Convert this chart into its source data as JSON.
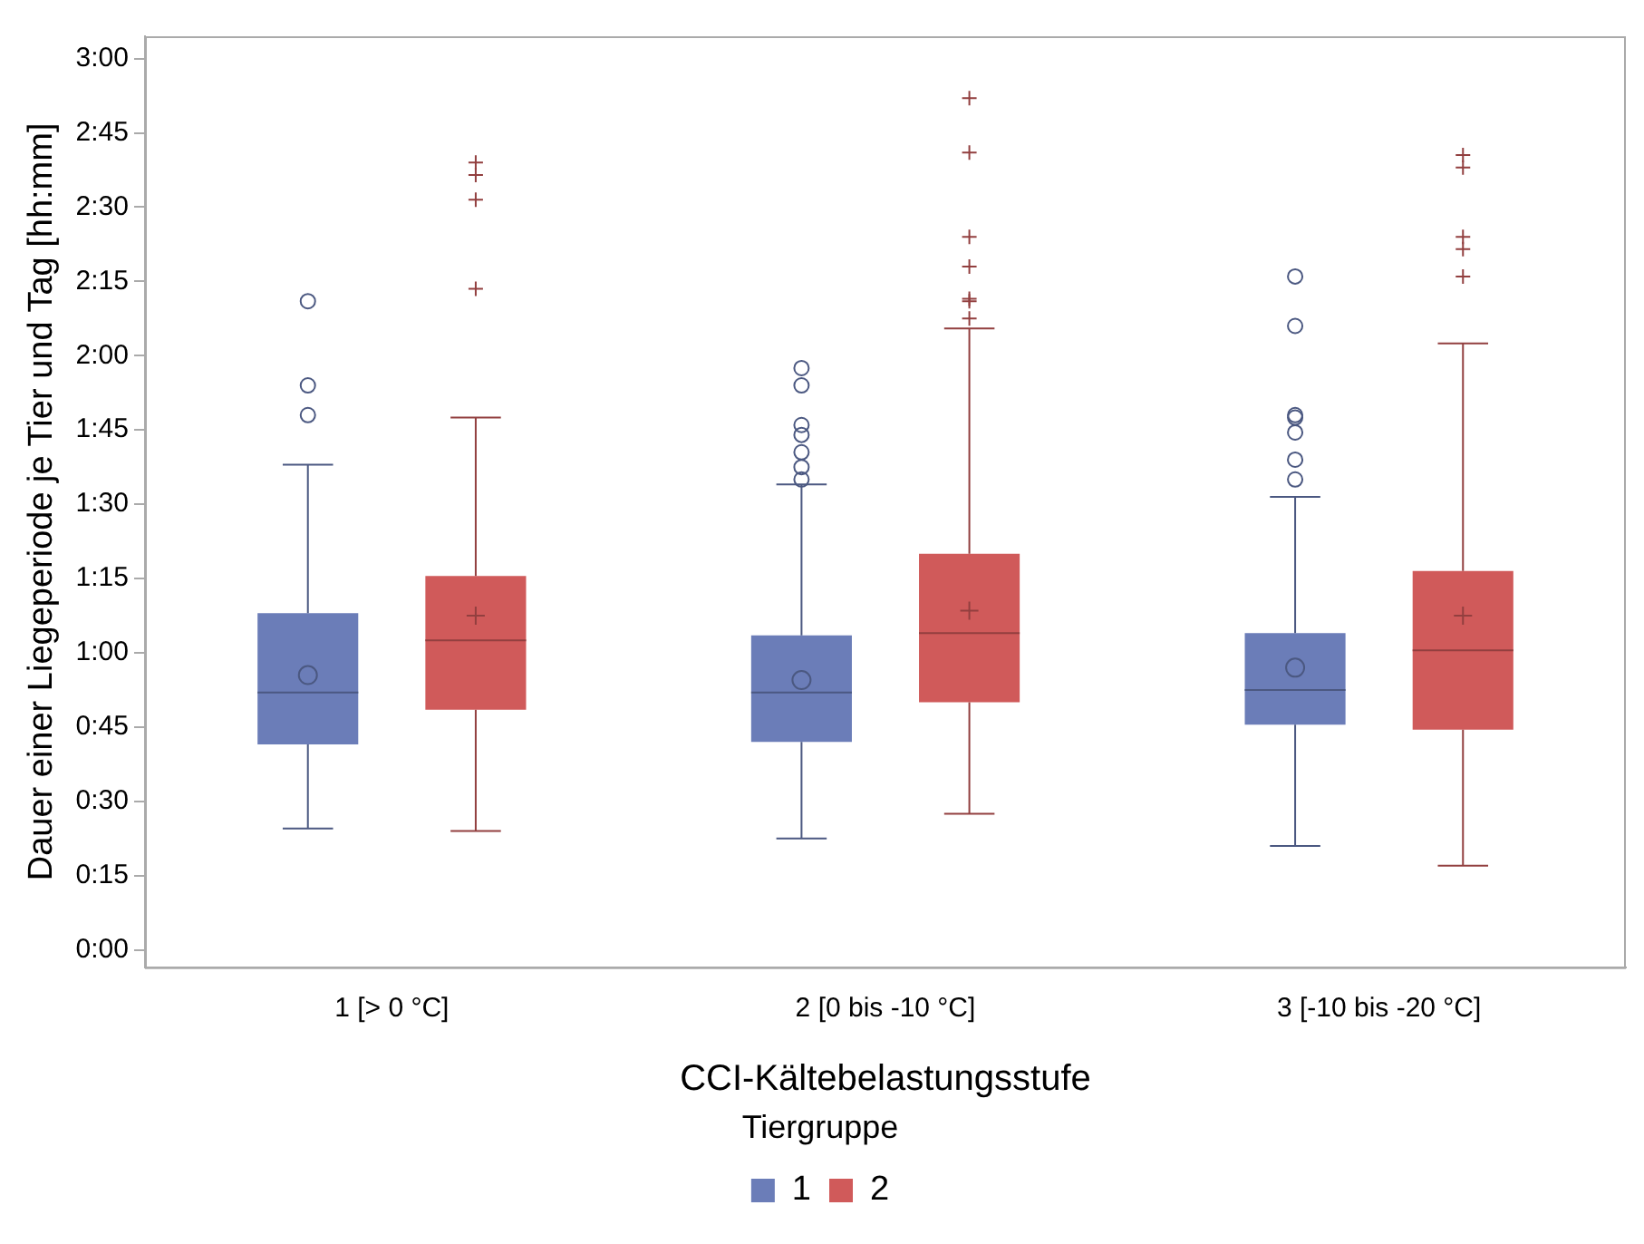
{
  "chart_data": {
    "type": "box",
    "xlabel": "CCI-Kältebelastungsstufe",
    "ylabel": "Dauer einer Liegeperiode je Tier und Tag [hh:mm]",
    "legend_title": "Tiergruppe",
    "legend": "bottom",
    "grid": false,
    "categories": [
      "1 [> 0 °C]",
      "2 [0 bis -10 °C]",
      "3 [-10 bis -20 °C]"
    ],
    "ylim": [
      -3.5,
      184.5
    ],
    "yticks": [
      {
        "value": 0,
        "label": "0:00"
      },
      {
        "value": 15,
        "label": "0:15"
      },
      {
        "value": 30,
        "label": "0:30"
      },
      {
        "value": 45,
        "label": "0:45"
      },
      {
        "value": 60,
        "label": "1:00"
      },
      {
        "value": 75,
        "label": "1:15"
      },
      {
        "value": 90,
        "label": "1:30"
      },
      {
        "value": 105,
        "label": "1:45"
      },
      {
        "value": 120,
        "label": "2:00"
      },
      {
        "value": 135,
        "label": "2:15"
      },
      {
        "value": 150,
        "label": "2:30"
      },
      {
        "value": 165,
        "label": "2:45"
      },
      {
        "value": 180,
        "label": "3:00"
      }
    ],
    "series": [
      {
        "name": "1",
        "color": "#6b7db8",
        "marker": "circle",
        "boxes": [
          {
            "low": 24.5,
            "q1": 41.5,
            "median": 52,
            "q3": 68,
            "high": 98,
            "mean": 55.5,
            "outliers": [
              108,
              114,
              131
            ]
          },
          {
            "low": 22.5,
            "q1": 42,
            "median": 52,
            "q3": 63.5,
            "high": 94,
            "mean": 54.5,
            "outliers": [
              95,
              97.5,
              100.5,
              104,
              106,
              114,
              117.5
            ]
          },
          {
            "low": 21,
            "q1": 45.5,
            "median": 52.5,
            "q3": 64,
            "high": 91.5,
            "mean": 57,
            "outliers": [
              95,
              99,
              104.5,
              107.5,
              108,
              126,
              136
            ]
          }
        ]
      },
      {
        "name": "2",
        "color": "#d05a5a",
        "marker": "cross",
        "boxes": [
          {
            "low": 24,
            "q1": 48.5,
            "median": 62.5,
            "q3": 75.5,
            "high": 107.5,
            "mean": 67.5,
            "outliers": [
              133.5,
              151.5,
              156.5,
              159
            ]
          },
          {
            "low": 27.5,
            "q1": 50,
            "median": 64,
            "q3": 80,
            "high": 125.5,
            "mean": 68.5,
            "outliers": [
              127.5,
              131,
              131.5,
              138,
              144,
              161,
              172
            ]
          },
          {
            "low": 17,
            "q1": 44.5,
            "median": 60.5,
            "q3": 76.5,
            "high": 122.5,
            "mean": 67.5,
            "outliers": [
              136,
              141.5,
              144,
              158,
              160.5
            ]
          }
        ]
      }
    ]
  }
}
